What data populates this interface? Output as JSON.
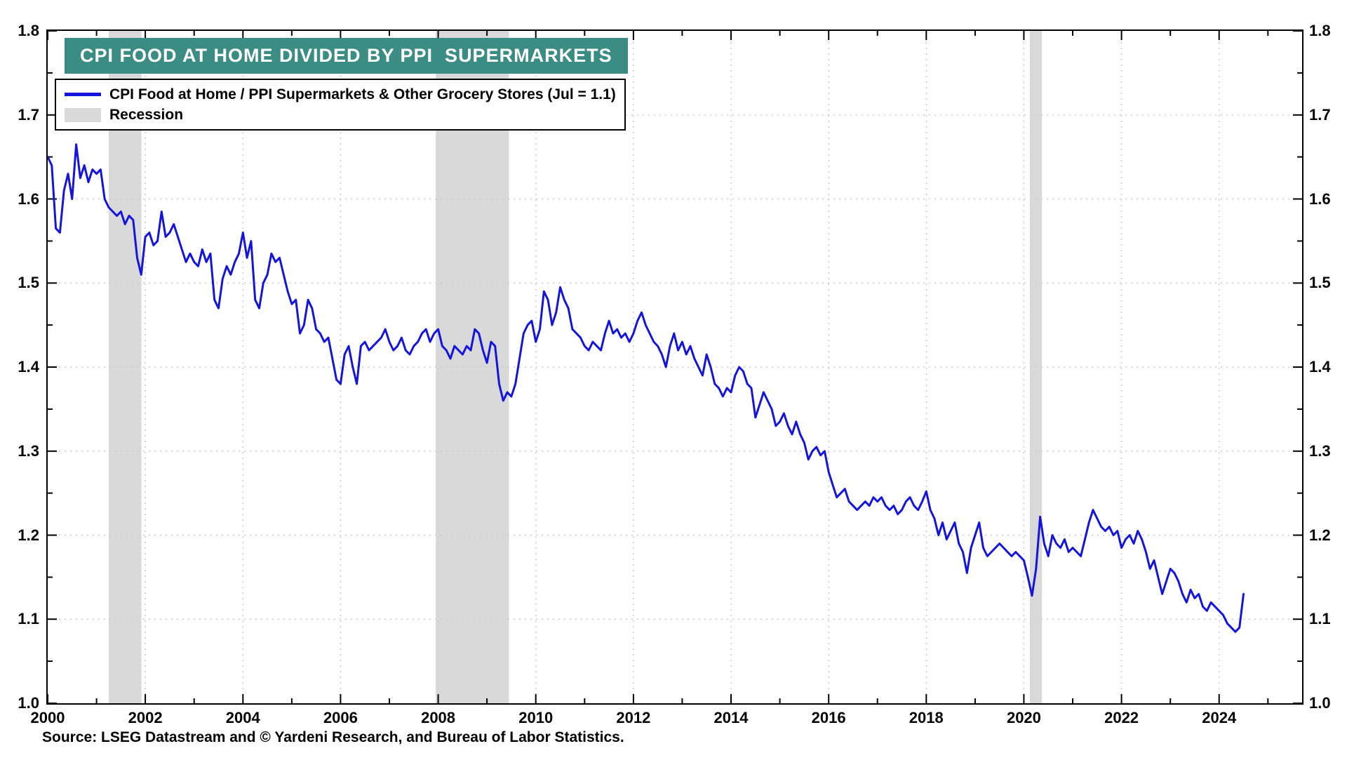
{
  "page": {
    "background": "#FFFFFF"
  },
  "title_banner": {
    "text": "CPI FOOD AT HOME DIVIDED BY PPI  SUPERMARKETS",
    "bg_color": "#3B8C82",
    "text_color": "#FFFFFF"
  },
  "legend": {
    "position": "top-left",
    "items": [
      {
        "type": "line",
        "color": "#1414DC",
        "label": "CPI Food at Home / PPI Supermarkets & Other Grocery Stores (Jul = 1.1)"
      },
      {
        "type": "band",
        "color": "#D9D9D9",
        "label": "Recession"
      }
    ]
  },
  "source_note": "Source: LSEG Datastream and © Yardeni Research, and Bureau of Labor Statistics.",
  "chart_data": {
    "type": "line",
    "title": "CPI FOOD AT HOME DIVIDED BY PPI SUPERMARKETS",
    "xlabel": "",
    "ylabel": "",
    "x_range": [
      2000,
      2025.7
    ],
    "y_range": [
      1.0,
      1.8
    ],
    "x_ticks_major": [
      2000,
      2002,
      2004,
      2006,
      2008,
      2010,
      2012,
      2014,
      2016,
      2018,
      2020,
      2022,
      2024
    ],
    "x_tick_labels": [
      "2000",
      "2002",
      "2004",
      "2006",
      "2008",
      "2010",
      "2012",
      "2014",
      "2016",
      "2018",
      "2020",
      "2022",
      "2024"
    ],
    "x_ticks_minor": [
      2001,
      2003,
      2005,
      2007,
      2009,
      2011,
      2013,
      2015,
      2017,
      2019,
      2021,
      2023,
      2025
    ],
    "y_ticks_major": [
      1.0,
      1.1,
      1.2,
      1.3,
      1.4,
      1.5,
      1.6,
      1.7,
      1.8
    ],
    "y_tick_labels": [
      "1.0",
      "1.1",
      "1.2",
      "1.3",
      "1.4",
      "1.5",
      "1.6",
      "1.7",
      "1.8"
    ],
    "y_ticks_minor": [
      1.05,
      1.15,
      1.25,
      1.35,
      1.45,
      1.55,
      1.65,
      1.75
    ],
    "grid": {
      "on": true,
      "x": [
        2002,
        2004,
        2006,
        2008,
        2010,
        2012,
        2014,
        2016,
        2018,
        2020,
        2022,
        2024
      ],
      "y": [
        1.1,
        1.2,
        1.3,
        1.4,
        1.5,
        1.6,
        1.7
      ],
      "color": "#CBCBCB"
    },
    "recession_color": "#D9D9D9",
    "recession_bands": [
      [
        2001.25,
        2001.92
      ],
      [
        2007.95,
        2009.45
      ],
      [
        2020.12,
        2020.37
      ]
    ],
    "legend_position": "top-left",
    "series": [
      {
        "name": "CPI Food at Home / PPI Supermarkets & Other Grocery Stores (Jul = 1.1)",
        "color": "#1414DC",
        "frequency": "monthly",
        "x_start": 2000.0,
        "values": [
          1.65,
          1.64,
          1.565,
          1.56,
          1.61,
          1.63,
          1.6,
          1.665,
          1.625,
          1.64,
          1.62,
          1.635,
          1.63,
          1.635,
          1.6,
          1.59,
          1.585,
          1.58,
          1.585,
          1.57,
          1.58,
          1.575,
          1.53,
          1.51,
          1.555,
          1.56,
          1.545,
          1.55,
          1.585,
          1.555,
          1.56,
          1.57,
          1.555,
          1.54,
          1.525,
          1.535,
          1.525,
          1.52,
          1.54,
          1.525,
          1.535,
          1.48,
          1.47,
          1.505,
          1.52,
          1.51,
          1.525,
          1.535,
          1.56,
          1.53,
          1.55,
          1.48,
          1.47,
          1.5,
          1.51,
          1.535,
          1.525,
          1.53,
          1.51,
          1.49,
          1.475,
          1.48,
          1.44,
          1.45,
          1.48,
          1.47,
          1.445,
          1.44,
          1.43,
          1.435,
          1.41,
          1.385,
          1.38,
          1.415,
          1.425,
          1.4,
          1.38,
          1.425,
          1.43,
          1.42,
          1.425,
          1.43,
          1.435,
          1.445,
          1.43,
          1.42,
          1.425,
          1.435,
          1.42,
          1.415,
          1.425,
          1.43,
          1.44,
          1.445,
          1.43,
          1.44,
          1.445,
          1.425,
          1.42,
          1.41,
          1.425,
          1.42,
          1.415,
          1.425,
          1.42,
          1.445,
          1.44,
          1.42,
          1.405,
          1.43,
          1.425,
          1.38,
          1.36,
          1.37,
          1.365,
          1.38,
          1.41,
          1.44,
          1.45,
          1.455,
          1.43,
          1.445,
          1.49,
          1.48,
          1.45,
          1.465,
          1.495,
          1.48,
          1.47,
          1.445,
          1.44,
          1.435,
          1.425,
          1.42,
          1.43,
          1.425,
          1.42,
          1.44,
          1.455,
          1.44,
          1.445,
          1.435,
          1.44,
          1.43,
          1.44,
          1.455,
          1.465,
          1.45,
          1.44,
          1.43,
          1.425,
          1.415,
          1.4,
          1.425,
          1.44,
          1.42,
          1.43,
          1.415,
          1.425,
          1.41,
          1.4,
          1.39,
          1.415,
          1.4,
          1.38,
          1.375,
          1.365,
          1.375,
          1.37,
          1.39,
          1.4,
          1.395,
          1.38,
          1.375,
          1.34,
          1.355,
          1.37,
          1.36,
          1.35,
          1.33,
          1.335,
          1.345,
          1.33,
          1.32,
          1.335,
          1.32,
          1.31,
          1.29,
          1.3,
          1.305,
          1.295,
          1.3,
          1.275,
          1.26,
          1.245,
          1.25,
          1.255,
          1.24,
          1.235,
          1.23,
          1.235,
          1.24,
          1.235,
          1.245,
          1.24,
          1.245,
          1.235,
          1.23,
          1.235,
          1.225,
          1.23,
          1.24,
          1.245,
          1.235,
          1.23,
          1.24,
          1.252,
          1.23,
          1.22,
          1.2,
          1.215,
          1.195,
          1.205,
          1.215,
          1.19,
          1.18,
          1.155,
          1.185,
          1.2,
          1.215,
          1.185,
          1.175,
          1.18,
          1.185,
          1.19,
          1.185,
          1.18,
          1.175,
          1.18,
          1.175,
          1.17,
          1.15,
          1.128,
          1.16,
          1.222,
          1.19,
          1.175,
          1.2,
          1.19,
          1.185,
          1.195,
          1.18,
          1.185,
          1.18,
          1.175,
          1.195,
          1.215,
          1.23,
          1.22,
          1.21,
          1.205,
          1.21,
          1.2,
          1.205,
          1.185,
          1.195,
          1.2,
          1.19,
          1.205,
          1.195,
          1.18,
          1.16,
          1.17,
          1.15,
          1.13,
          1.145,
          1.16,
          1.155,
          1.145,
          1.13,
          1.12,
          1.135,
          1.125,
          1.13,
          1.115,
          1.11,
          1.12,
          1.115,
          1.11,
          1.105,
          1.095,
          1.09,
          1.085,
          1.09,
          1.13
        ]
      }
    ]
  }
}
